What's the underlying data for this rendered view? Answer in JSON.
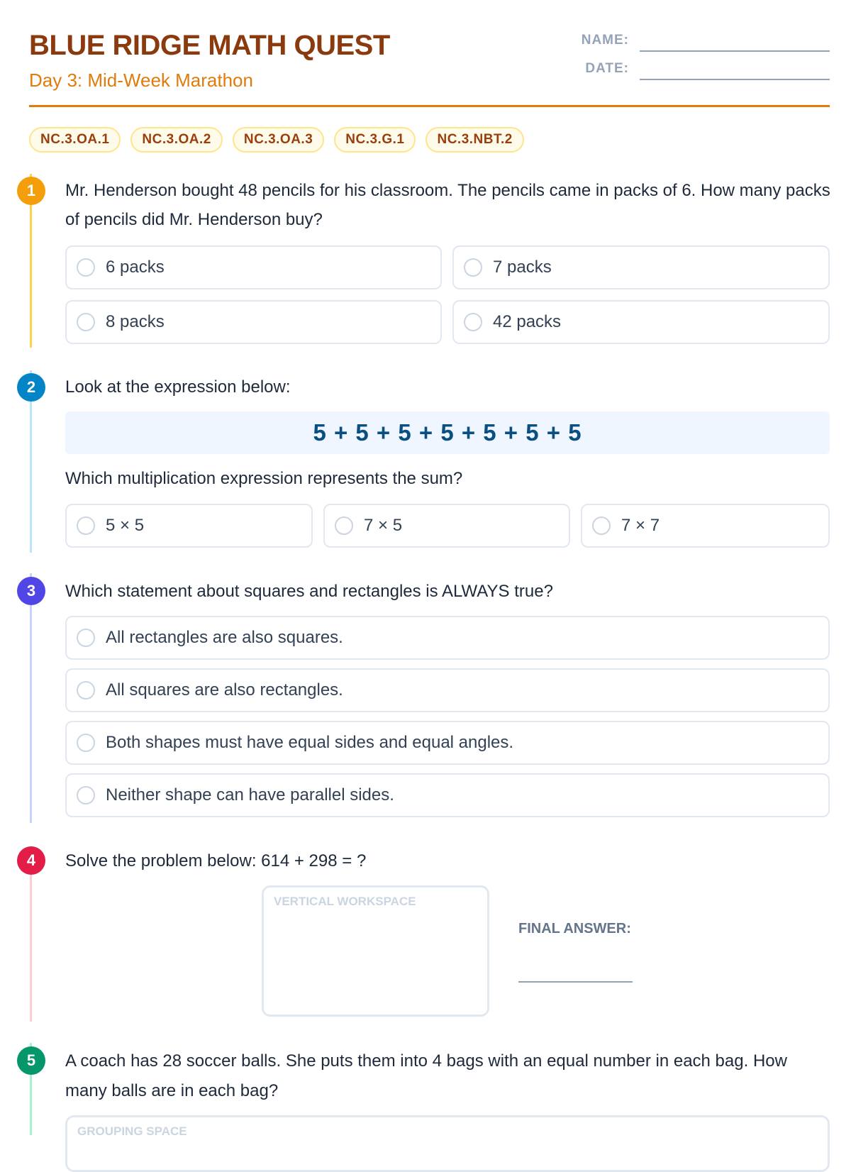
{
  "header": {
    "title": "BLUE RIDGE MATH QUEST",
    "subtitle": "Day 3: Mid-Week Marathon",
    "name_label": "NAME:",
    "date_label": "DATE:"
  },
  "standards": [
    "NC.3.OA.1",
    "NC.3.OA.2",
    "NC.3.OA.3",
    "NC.3.G.1",
    "NC.3.NBT.2"
  ],
  "colors": {
    "q1": "#f59e0b",
    "q2": "#0284c7",
    "q3": "#4f46e5",
    "q4": "#e11d48",
    "q5": "#059669"
  },
  "questions": [
    {
      "number": "1",
      "text": "Mr. Henderson bought 48 pencils for his classroom. The pencils came in packs of 6. How many packs of pencils did Mr. Henderson buy?",
      "options": [
        "6 packs",
        "7 packs",
        "8 packs",
        "42 packs"
      ]
    },
    {
      "number": "2",
      "text": "Look at the expression below:",
      "expression": "5 + 5 + 5 + 5 + 5 + 5 + 5",
      "followup": "Which multiplication expression represents the sum?",
      "options": [
        "5 × 5",
        "7 × 5",
        "7 × 7"
      ]
    },
    {
      "number": "3",
      "text": "Which statement about squares and rectangles is ALWAYS true?",
      "options": [
        "All rectangles are also squares.",
        "All squares are also rectangles.",
        "Both shapes must have equal sides and equal angles.",
        "Neither shape can have parallel sides."
      ]
    },
    {
      "number": "4",
      "text": "Solve the problem below: 614 + 298 = ?",
      "workspace_label": "VERTICAL WORKSPACE",
      "answer_label": "FINAL ANSWER:"
    },
    {
      "number": "5",
      "text": "A coach has 28 soccer balls. She puts them into 4 bags with an equal number in each bag. How many balls are in each bag?",
      "workspace_label": "GROUPING SPACE"
    }
  ]
}
